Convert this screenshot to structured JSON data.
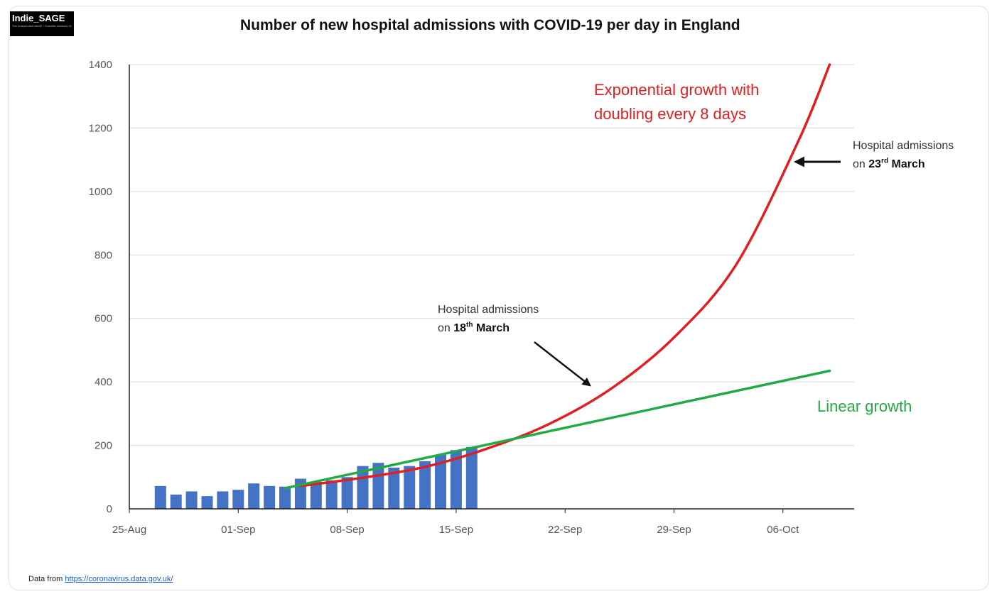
{
  "logo": {
    "text": "Indie_SAGE",
    "subtext": "The Independent SAGE • Scientific Advisory Group"
  },
  "chart_data": {
    "type": "bar",
    "title": "Number of new hospital admissions with COVID-19 per day in England",
    "xlabel": "",
    "ylabel": "",
    "ylim": [
      0,
      1400
    ],
    "yticks": [
      0,
      200,
      400,
      600,
      800,
      1000,
      1200,
      1400
    ],
    "xtick_labels": [
      "25-Aug",
      "01-Sep",
      "08-Sep",
      "15-Sep",
      "22-Sep",
      "29-Sep",
      "06-Oct"
    ],
    "xlim": [
      "2020-08-25",
      "2020-10-10"
    ],
    "bar_color": "#4472c4",
    "bars": [
      {
        "date": "2020-08-27",
        "value": 72
      },
      {
        "date": "2020-08-28",
        "value": 45
      },
      {
        "date": "2020-08-29",
        "value": 55
      },
      {
        "date": "2020-08-30",
        "value": 40
      },
      {
        "date": "2020-08-31",
        "value": 55
      },
      {
        "date": "2020-09-01",
        "value": 60
      },
      {
        "date": "2020-09-02",
        "value": 80
      },
      {
        "date": "2020-09-03",
        "value": 72
      },
      {
        "date": "2020-09-04",
        "value": 70
      },
      {
        "date": "2020-09-05",
        "value": 95
      },
      {
        "date": "2020-09-06",
        "value": 85
      },
      {
        "date": "2020-09-07",
        "value": 90
      },
      {
        "date": "2020-09-08",
        "value": 100
      },
      {
        "date": "2020-09-09",
        "value": 135
      },
      {
        "date": "2020-09-10",
        "value": 145
      },
      {
        "date": "2020-09-11",
        "value": 130
      },
      {
        "date": "2020-09-12",
        "value": 135
      },
      {
        "date": "2020-09-13",
        "value": 150
      },
      {
        "date": "2020-09-14",
        "value": 170
      },
      {
        "date": "2020-09-15",
        "value": 185
      },
      {
        "date": "2020-09-16",
        "value": 195
      }
    ],
    "series": [
      {
        "type": "line",
        "color": "#e02020",
        "x": [
          "2020-09-05",
          "2020-09-09",
          "2020-09-13",
          "2020-09-17",
          "2020-09-21",
          "2020-09-25",
          "2020-09-29",
          "2020-10-03",
          "2020-10-07",
          "2020-10-09"
        ],
        "y": [
          72,
          98,
          132,
          190,
          268,
          380,
          540,
          770,
          1160,
          1400
        ]
      },
      {
        "type": "line",
        "color": "#22aa44",
        "x": [
          "2020-09-04",
          "2020-10-09"
        ],
        "y": [
          65,
          435
        ]
      }
    ]
  },
  "annotations": {
    "exp_line1": "Exponential growth with",
    "exp_line2": "doubling every 8 days",
    "linear": "Linear growth",
    "adm23_line1": "Hospital admissions",
    "adm23_on": "on ",
    "adm23_day": "23",
    "adm23_sup": "rd",
    "adm23_month": " March",
    "adm18_line1": "Hospital admissions",
    "adm18_on": "on ",
    "adm18_day": "18",
    "adm18_sup": "th",
    "adm18_month": " March"
  },
  "source": {
    "prefix": "Data from ",
    "link": "https://coronavirus.data.gov.uk/"
  }
}
